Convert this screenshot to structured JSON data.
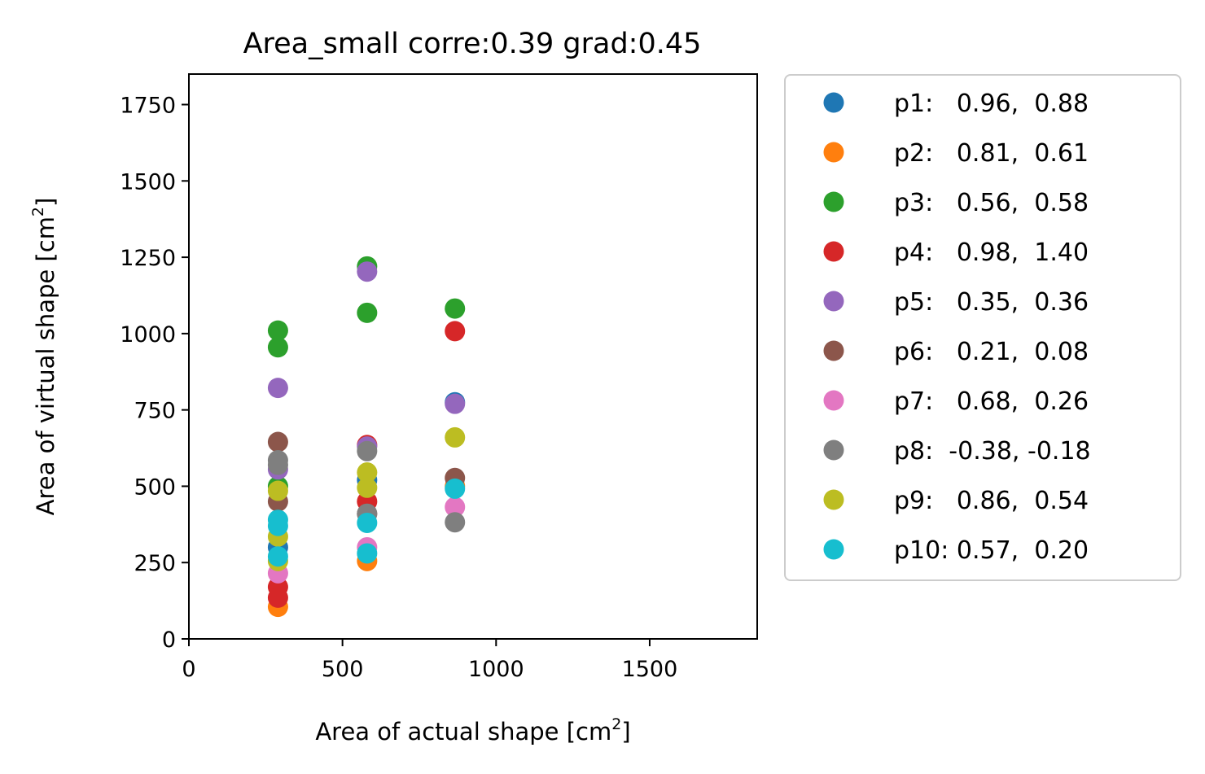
{
  "chart_data": {
    "type": "scatter",
    "title": "Area_small corre:0.39 grad:0.45",
    "xlabel": {
      "text": "Area of actual shape [cm",
      "sup": "2",
      "tail": "]"
    },
    "ylabel": {
      "text": "Area of virtual shape [cm",
      "sup": "2",
      "tail": "]"
    },
    "xlim": [
      0,
      1850
    ],
    "ylim": [
      0,
      1850
    ],
    "xticks": [
      0,
      500,
      1000,
      1500
    ],
    "yticks": [
      0,
      250,
      500,
      750,
      1000,
      1250,
      1500,
      1750
    ],
    "grid": false,
    "legend_position": "outside-right",
    "series": [
      {
        "name": "p1:   0.96,  0.88",
        "color": "#1f77b4",
        "points": [
          [
            290,
            300
          ],
          [
            580,
            520
          ],
          [
            866,
            775
          ]
        ]
      },
      {
        "name": "p2:   0.81,  0.61",
        "color": "#ff7f0e",
        "points": [
          [
            290,
            105
          ],
          [
            580,
            255
          ],
          [
            866,
            500
          ]
        ]
      },
      {
        "name": "p3:   0.56,  0.58",
        "color": "#2ca02c",
        "points": [
          [
            290,
            1010
          ],
          [
            290,
            955
          ],
          [
            290,
            500
          ],
          [
            580,
            1220
          ],
          [
            580,
            1068
          ],
          [
            866,
            1082
          ]
        ]
      },
      {
        "name": "p4:   0.98,  1.40",
        "color": "#d62728",
        "points": [
          [
            290,
            170
          ],
          [
            290,
            135
          ],
          [
            580,
            635
          ],
          [
            580,
            450
          ],
          [
            866,
            1008
          ]
        ]
      },
      {
        "name": "p5:   0.35,  0.36",
        "color": "#9467bd",
        "points": [
          [
            290,
            822
          ],
          [
            290,
            555
          ],
          [
            580,
            1203
          ],
          [
            580,
            630
          ],
          [
            866,
            770
          ]
        ]
      },
      {
        "name": "p6:   0.21,  0.08",
        "color": "#8c564b",
        "points": [
          [
            290,
            645
          ],
          [
            290,
            450
          ],
          [
            580,
            410
          ],
          [
            866,
            527
          ]
        ]
      },
      {
        "name": "p7:   0.68,  0.26",
        "color": "#e377c2",
        "points": [
          [
            290,
            215
          ],
          [
            580,
            300
          ],
          [
            866,
            432
          ]
        ]
      },
      {
        "name": "p8:  -0.38, -0.18",
        "color": "#7f7f7f",
        "points": [
          [
            290,
            585
          ],
          [
            290,
            570
          ],
          [
            580,
            615
          ],
          [
            580,
            410
          ],
          [
            866,
            382
          ]
        ]
      },
      {
        "name": "p9:   0.86,  0.54",
        "color": "#bcbd22",
        "points": [
          [
            290,
            485
          ],
          [
            290,
            335
          ],
          [
            290,
            255
          ],
          [
            580,
            545
          ],
          [
            580,
            495
          ],
          [
            866,
            660
          ]
        ]
      },
      {
        "name": "p10: 0.57,  0.20",
        "color": "#17becf",
        "points": [
          [
            290,
            390
          ],
          [
            290,
            370
          ],
          [
            290,
            270
          ],
          [
            580,
            380
          ],
          [
            580,
            280
          ],
          [
            866,
            492
          ]
        ]
      }
    ]
  }
}
